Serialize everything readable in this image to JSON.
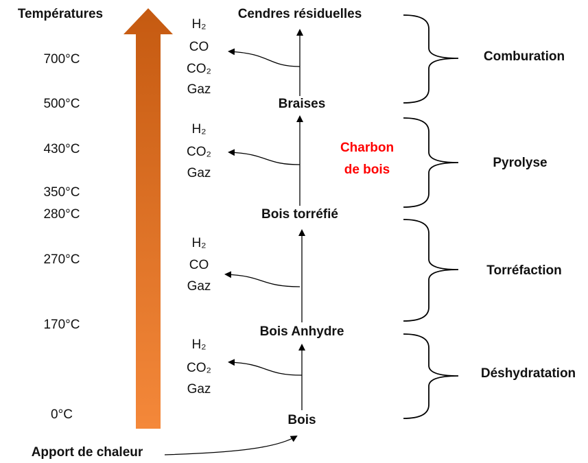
{
  "title": "Températures",
  "temperatures": [
    "700°C",
    "500°C",
    "430°C",
    "350°C",
    "280°C",
    "270°C",
    "170°C",
    "0°C"
  ],
  "heat_source": "Apport de chaleur",
  "stages": [
    "Cendres résiduelles",
    "Braises",
    "Bois torréfié",
    "Bois Anhydre",
    "Bois"
  ],
  "gases": [
    [
      "H₂",
      "CO",
      "CO₂",
      "Gaz"
    ],
    [
      "H₂",
      "CO₂",
      "Gaz"
    ],
    [
      "H₂",
      "CO",
      "Gaz"
    ],
    [
      "H₂",
      "CO₂",
      "Gaz"
    ]
  ],
  "product": [
    "Charbon",
    "de bois"
  ],
  "phases": [
    "Comburation",
    "Pyrolyse",
    "Torréfaction",
    "Déshydratation"
  ]
}
